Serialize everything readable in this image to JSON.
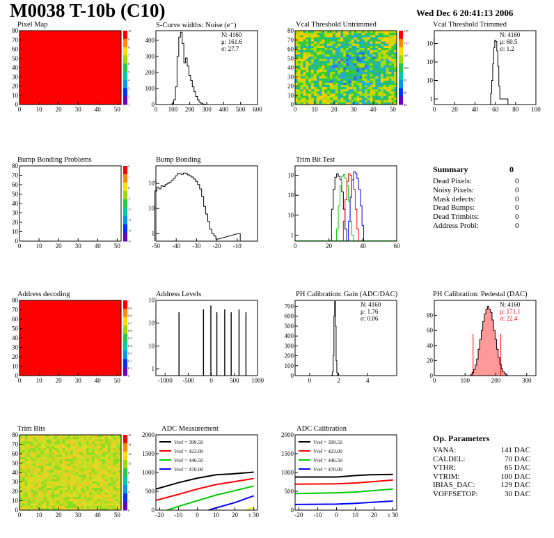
{
  "header": {
    "title": "M0038 T-10b (C10)",
    "timestamp": "Wed Dec  6 20:41:13 2006"
  },
  "colors": {
    "red": "#ff0000",
    "green": "#00cc00",
    "blue": "#0000ff",
    "black": "#000000",
    "yellow": "#ffee00",
    "pedestal_fill": "#ff9999"
  },
  "panels": {
    "pixel_map": {
      "title": "Pixel Map",
      "kind": "heatmap-uniform",
      "fill_color": "#ff0000",
      "xlim": [
        0,
        52
      ],
      "ylim": [
        0,
        80
      ],
      "xticks": [
        0,
        10,
        20,
        30,
        40,
        50
      ],
      "yticks": [
        0,
        10,
        20,
        30,
        40,
        50,
        60,
        70,
        80
      ],
      "zticks": [
        "10",
        "9",
        "8",
        "7",
        "6",
        "5",
        "4",
        "3",
        "2",
        "1"
      ]
    },
    "noise": {
      "title": "S-Curve widths: Noise (e⁻)",
      "kind": "histogram",
      "xlim": [
        0,
        600
      ],
      "ylim": [
        0,
        460
      ],
      "xticks": [
        0,
        100,
        200,
        300,
        400,
        500,
        600
      ],
      "yticks": [
        0,
        100,
        200,
        300,
        400
      ],
      "stats": [
        "N: 4160",
        "μ: 161.6",
        "σ: 27.7"
      ],
      "x": [
        100,
        110,
        120,
        130,
        140,
        150,
        160,
        170,
        180,
        190,
        200,
        210,
        220,
        230,
        240,
        250,
        260,
        270,
        280,
        290
      ],
      "y": [
        5,
        30,
        110,
        300,
        420,
        450,
        380,
        260,
        290,
        240,
        180,
        150,
        110,
        80,
        50,
        30,
        15,
        8,
        3,
        1
      ]
    },
    "vcal_untrimmed": {
      "title": "Vcal Threshold Untrimmed",
      "kind": "heatmap-noise",
      "palette": "green-blue",
      "xlim": [
        0,
        52
      ],
      "ylim": [
        0,
        80
      ],
      "xticks": [
        0,
        10,
        20,
        30,
        40,
        50
      ],
      "yticks": [
        0,
        10,
        20,
        30,
        40,
        50,
        60,
        70,
        80
      ],
      "zticks": [
        "115",
        "110",
        "105",
        "100",
        "95",
        "90",
        "85"
      ]
    },
    "vcal_trimmed": {
      "title": "Vcal Threshold Trimmed",
      "kind": "histogram-log",
      "xlim": [
        0,
        100
      ],
      "ylim_log": [
        0.5,
        5000
      ],
      "xticks": [
        0,
        20,
        40,
        60,
        80,
        100
      ],
      "stats": [
        "N: 4160",
        "μ: 60.5",
        "σ:  1.2"
      ],
      "x": [
        56,
        57,
        58,
        59,
        60,
        61,
        62,
        63,
        64,
        65,
        72
      ],
      "y": [
        2,
        10,
        80,
        600,
        1500,
        1300,
        400,
        60,
        5,
        1,
        1
      ]
    },
    "bump_map": {
      "title": "Bump Bonding Problems",
      "kind": "heatmap-empty",
      "xlim": [
        0,
        52
      ],
      "ylim": [
        0,
        80
      ],
      "xticks": [
        0,
        10,
        20,
        30,
        40,
        50
      ],
      "yticks": [
        0,
        10,
        20,
        30,
        40,
        50,
        60,
        70,
        80
      ],
      "zticks": [
        "2",
        "1",
        "0",
        "-1",
        "-2",
        "-3",
        "-4",
        "-5"
      ]
    },
    "bump_bonding": {
      "title": "Bump Bonding",
      "kind": "histogram-log",
      "xlim": [
        -50,
        0
      ],
      "ylim_log": [
        0.5,
        500
      ],
      "xticks": [
        -50,
        -40,
        -30,
        -20,
        -10
      ],
      "x": [
        -50,
        -49,
        -48,
        -47,
        -46,
        -45,
        -44,
        -43,
        -42,
        -41,
        -40,
        -39,
        -38,
        -37,
        -36,
        -35,
        -34,
        -33,
        -32,
        -31,
        -30,
        -29,
        -28,
        -27,
        -26,
        -25,
        -24,
        -23,
        -22,
        -21,
        -20,
        -9
      ],
      "y": [
        50,
        70,
        60,
        80,
        75,
        90,
        100,
        110,
        130,
        160,
        200,
        250,
        240,
        230,
        260,
        250,
        220,
        200,
        180,
        150,
        120,
        90,
        60,
        30,
        12,
        6,
        3,
        1.5,
        1,
        0.8,
        0.6,
        1
      ]
    },
    "trim_bit_test": {
      "title": "Trim Bit Test",
      "kind": "multi-histogram-log",
      "xlim": [
        0,
        60
      ],
      "ylim_log": [
        0.5,
        3000
      ],
      "xticks": [
        0,
        20,
        40,
        60
      ],
      "series": [
        {
          "color": "#000000",
          "x": [
            22,
            23,
            24,
            25,
            26,
            27,
            28,
            29,
            30
          ],
          "y": [
            20,
            200,
            800,
            1200,
            900,
            600,
            150,
            20,
            2
          ]
        },
        {
          "color": "#00cc00",
          "x": [
            25,
            26,
            27,
            28,
            29,
            30,
            31,
            32,
            33,
            34
          ],
          "y": [
            2,
            30,
            300,
            900,
            1100,
            700,
            300,
            50,
            5,
            1
          ]
        },
        {
          "color": "#ff0000",
          "x": [
            29,
            30,
            31,
            32,
            33,
            34,
            35,
            36,
            37
          ],
          "y": [
            5,
            60,
            500,
            1200,
            1000,
            600,
            200,
            20,
            2
          ]
        },
        {
          "color": "#0000ff",
          "x": [
            32,
            33,
            34,
            35,
            36,
            37,
            38,
            39,
            40
          ],
          "y": [
            5,
            80,
            600,
            1500,
            1300,
            700,
            200,
            30,
            3
          ]
        }
      ]
    },
    "summary": {
      "title": "Summary",
      "value": "0",
      "rows": [
        {
          "label": "Dead Pixels:",
          "value": "0"
        },
        {
          "label": "Noisy Pixels:",
          "value": "0"
        },
        {
          "label": "Mask defects:",
          "value": "0"
        },
        {
          "label": "Dead Bumps:",
          "value": "0"
        },
        {
          "label": "Dead Trimbits:",
          "value": "0"
        },
        {
          "label": "Address Probl:",
          "value": "0"
        }
      ]
    },
    "address_decoding": {
      "title": "Address decoding",
      "kind": "heatmap-uniform",
      "fill_color": "#ff0000",
      "xlim": [
        0,
        52
      ],
      "ylim": [
        0,
        80
      ],
      "xticks": [
        0,
        10,
        20,
        30,
        40,
        50
      ],
      "yticks": [
        0,
        10,
        20,
        30,
        40,
        50,
        60,
        70,
        80
      ],
      "zticks": [
        "1",
        "0.9",
        "0.8",
        "0.7",
        "0.6",
        "0.5",
        "0.4",
        "0.3",
        "0.2",
        "0.1",
        "0"
      ]
    },
    "address_levels": {
      "title": "Address Levels",
      "kind": "spikes-log",
      "xlim": [
        -1200,
        1000
      ],
      "ylim_log": [
        0.5,
        1000
      ],
      "xticks": [
        -1000,
        -500,
        0,
        500,
        1000
      ],
      "x": [
        -700,
        -170,
        -10,
        120,
        290,
        430,
        600,
        750
      ],
      "y": [
        300,
        400,
        600,
        300,
        400,
        300,
        400,
        300
      ]
    },
    "ph_gain": {
      "title": "PH Calibration: Gain (ADC/DAC)",
      "kind": "histogram",
      "xlim": [
        -1,
        6
      ],
      "ylim": [
        0,
        760
      ],
      "xticks": [
        0,
        2,
        4
      ],
      "yticks": [
        0,
        100,
        200,
        300,
        400,
        500,
        600,
        700
      ],
      "stats": [
        "N: 4160",
        "μ: 1.76",
        "σ: 0.06"
      ],
      "x": [
        1.55,
        1.6,
        1.65,
        1.7,
        1.75,
        1.8,
        1.85,
        1.9,
        1.95
      ],
      "y": [
        5,
        40,
        200,
        600,
        750,
        500,
        150,
        30,
        5
      ]
    },
    "ph_pedestal": {
      "title": "PH Calibration: Pedestal (DAC)",
      "kind": "histogram-fit",
      "xlim": [
        0,
        330
      ],
      "ylim": [
        0,
        100
      ],
      "xticks": [
        0,
        100,
        200,
        300
      ],
      "yticks": [
        0,
        20,
        40,
        60,
        80
      ],
      "stats": [
        "N: 4160"
      ],
      "fit_stats": [
        "μ: 171.1",
        "σ: 22.4"
      ],
      "x": [
        120,
        125,
        130,
        135,
        140,
        145,
        150,
        155,
        160,
        165,
        170,
        175,
        180,
        185,
        190,
        195,
        200,
        205,
        210,
        215,
        220,
        225,
        230,
        235
      ],
      "y": [
        1,
        4,
        8,
        14,
        22,
        35,
        48,
        60,
        72,
        82,
        88,
        92,
        88,
        84,
        74,
        60,
        48,
        35,
        24,
        15,
        9,
        5,
        3,
        1
      ],
      "cut_lines": [
        126,
        216
      ]
    },
    "trim_bits": {
      "title": "Trim Bits",
      "kind": "heatmap-noise",
      "palette": "yellow-green",
      "xlim": [
        0,
        52
      ],
      "ylim": [
        0,
        80
      ],
      "xticks": [
        0,
        10,
        20,
        30,
        40,
        50
      ],
      "yticks": [
        0,
        10,
        20,
        30,
        40,
        50,
        60,
        70,
        80
      ],
      "zticks": [
        "16",
        "14",
        "12",
        "10",
        "8",
        "6",
        "4",
        "2",
        "0"
      ]
    },
    "adc_measurement": {
      "title": "ADC Measurement",
      "kind": "lines",
      "xlim": [
        -22,
        32
      ],
      "ylim": [
        0,
        2000
      ],
      "xticks": [
        -20,
        -10,
        0,
        10,
        20,
        30
      ],
      "xtick_last_label": "τ 30",
      "yticks": [
        0,
        500,
        1000,
        1500,
        2000
      ],
      "series": [
        {
          "name": "Vref = 399.50",
          "color": "#000000",
          "x": [
            -22,
            -10,
            0,
            10,
            12,
            18,
            30
          ],
          "y": [
            560,
            730,
            850,
            940,
            0,
            960,
            1010
          ]
        },
        {
          "name": "Vref = 423.00",
          "color": "#ff0000",
          "x": [
            -22,
            -10,
            0,
            10,
            20,
            30
          ],
          "y": [
            260,
            420,
            560,
            680,
            760,
            840
          ]
        },
        {
          "name": "Vref = 446.50",
          "color": "#00cc00",
          "x": [
            -16,
            -10,
            0,
            10,
            20,
            30
          ],
          "y": [
            0,
            100,
            250,
            400,
            520,
            640
          ]
        },
        {
          "name": "Vref = 470.00",
          "color": "#0000ff",
          "x": [
            6,
            10,
            20,
            30
          ],
          "y": [
            0,
            60,
            200,
            380
          ]
        }
      ],
      "extra_yellow": [
        [
          26,
          0
        ],
        [
          30,
          80
        ]
      ]
    },
    "adc_calibration": {
      "title": "ADC Calibration",
      "kind": "lines",
      "xlim": [
        -22,
        32
      ],
      "ylim": [
        0,
        2000
      ],
      "xticks": [
        -20,
        -10,
        0,
        10,
        20,
        30
      ],
      "xtick_last_label": "τ 30",
      "yticks": [
        0,
        500,
        1000,
        1500,
        2000
      ],
      "series": [
        {
          "name": "Vref = 399.50",
          "color": "#000000",
          "x": [
            -22,
            0,
            10,
            18,
            30
          ],
          "y": [
            880,
            880,
            920,
            940,
            950
          ]
        },
        {
          "name": "Vref = 423.00",
          "color": "#ff0000",
          "x": [
            -22,
            0,
            10,
            20,
            30
          ],
          "y": [
            690,
            700,
            720,
            760,
            800
          ]
        },
        {
          "name": "Vref = 446.50",
          "color": "#00cc00",
          "x": [
            -22,
            0,
            10,
            20,
            30
          ],
          "y": [
            440,
            460,
            480,
            520,
            560
          ]
        },
        {
          "name": "Vref = 470.00",
          "color": "#0000ff",
          "x": [
            -22,
            0,
            10,
            20,
            30
          ],
          "y": [
            150,
            160,
            180,
            210,
            240
          ]
        }
      ]
    },
    "op_params": {
      "title": "Op. Parameters",
      "rows": [
        {
          "label": "VANA:",
          "value": "141 DAC"
        },
        {
          "label": "CALDEL:",
          "value": "70 DAC"
        },
        {
          "label": "VTHR:",
          "value": "65 DAC"
        },
        {
          "label": "VTRIM:",
          "value": "100 DAC"
        },
        {
          "label": "IBIAS_DAC:",
          "value": "129 DAC"
        },
        {
          "label": "VOFFSETOP:",
          "value": "30 DAC"
        }
      ]
    }
  },
  "chart_data": [
    {
      "type": "heatmap",
      "title": "Pixel Map",
      "xlim": [
        0,
        52
      ],
      "ylim": [
        0,
        80
      ],
      "note": "uniform value 10"
    },
    {
      "type": "bar",
      "title": "S-Curve widths: Noise (e⁻)",
      "xlim": [
        0,
        600
      ],
      "ylim": [
        0,
        460
      ]
    },
    {
      "type": "heatmap",
      "title": "Vcal Threshold Untrimmed",
      "xlim": [
        0,
        52
      ],
      "ylim": [
        0,
        80
      ]
    },
    {
      "type": "bar",
      "title": "Vcal Threshold Trimmed",
      "xlim": [
        0,
        100
      ],
      "log_y": true
    },
    {
      "type": "heatmap",
      "title": "Bump Bonding Problems",
      "xlim": [
        0,
        52
      ],
      "ylim": [
        0,
        80
      ]
    },
    {
      "type": "bar",
      "title": "Bump Bonding",
      "xlim": [
        -50,
        0
      ],
      "log_y": true
    },
    {
      "type": "bar",
      "title": "Trim Bit Test",
      "xlim": [
        0,
        60
      ],
      "log_y": true
    },
    {
      "type": "heatmap",
      "title": "Address decoding",
      "xlim": [
        0,
        52
      ],
      "ylim": [
        0,
        80
      ]
    },
    {
      "type": "bar",
      "title": "Address Levels",
      "xlim": [
        -1200,
        1000
      ],
      "log_y": true
    },
    {
      "type": "bar",
      "title": "PH Calibration: Gain (ADC/DAC)",
      "xlim": [
        -1,
        6
      ],
      "ylim": [
        0,
        760
      ]
    },
    {
      "type": "bar",
      "title": "PH Calibration: Pedestal (DAC)",
      "xlim": [
        0,
        330
      ],
      "ylim": [
        0,
        100
      ]
    },
    {
      "type": "heatmap",
      "title": "Trim Bits",
      "xlim": [
        0,
        52
      ],
      "ylim": [
        0,
        80
      ]
    },
    {
      "type": "line",
      "title": "ADC Measurement",
      "xlim": [
        -22,
        32
      ],
      "ylim": [
        0,
        2000
      ]
    },
    {
      "type": "line",
      "title": "ADC Calibration",
      "xlim": [
        -22,
        32
      ],
      "ylim": [
        0,
        2000
      ]
    }
  ]
}
